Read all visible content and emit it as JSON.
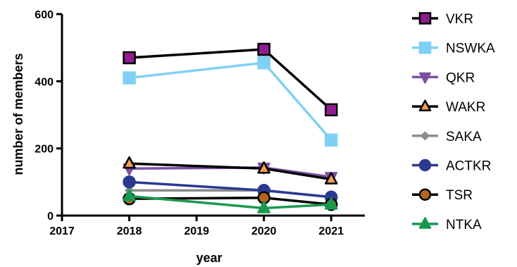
{
  "chart_data": {
    "type": "line",
    "title": "",
    "xlabel": "year",
    "ylabel": "number of members",
    "xlim": [
      2017,
      2021.5
    ],
    "ylim": [
      0,
      600
    ],
    "x_ticks": [
      "2017",
      "2018",
      "2019",
      "2020",
      "2021"
    ],
    "y_ticks": [
      "0",
      "200",
      "400",
      "600"
    ],
    "x": [
      2018,
      2020,
      2021
    ],
    "legend_position": "right",
    "series": [
      {
        "name": "VKR",
        "values": [
          470,
          495,
          315
        ],
        "marker": "square",
        "line_color": "#000000",
        "fill_color": "#8e1e8e"
      },
      {
        "name": "NSWKA",
        "values": [
          410,
          455,
          225
        ],
        "marker": "square",
        "line_color": "#7fd0f5",
        "fill_color": "#7fd0f5"
      },
      {
        "name": "QKR",
        "values": [
          140,
          143,
          115
        ],
        "marker": "triangle-down",
        "line_color": "#7b4fa2",
        "fill_color": "#7b4fa2"
      },
      {
        "name": "WAKR",
        "values": [
          155,
          140,
          108
        ],
        "marker": "triangle-up",
        "line_color": "#000000",
        "fill_color": "#f0a050"
      },
      {
        "name": "SAKA",
        "values": [
          75,
          75,
          55
        ],
        "marker": "diamond",
        "line_color": "#8c8c8c",
        "fill_color": "#8c8c8c"
      },
      {
        "name": "ACTKR",
        "values": [
          100,
          75,
          55
        ],
        "marker": "circle",
        "line_color": "#2b3990",
        "fill_color": "#2b3990"
      },
      {
        "name": "TSR",
        "values": [
          50,
          53,
          33
        ],
        "marker": "circle",
        "line_color": "#000000",
        "fill_color": "#b5651d"
      },
      {
        "name": "NTKA",
        "values": [
          58,
          22,
          33
        ],
        "marker": "triangle-up",
        "line_color": "#1a9850",
        "fill_color": "#1a9850"
      }
    ]
  }
}
